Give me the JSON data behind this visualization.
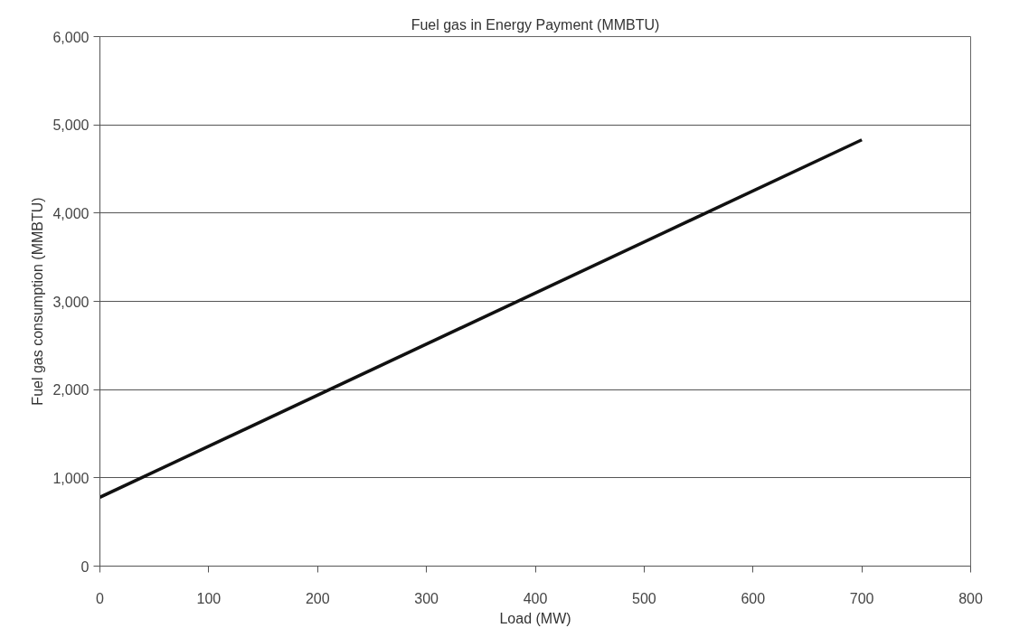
{
  "chart_data": {
    "type": "line",
    "title": "Fuel gas in Energy Payment (MMBTU)",
    "xlabel": "Load (MW)",
    "ylabel": "Fuel gas consumption (MMBTU)",
    "x": [
      0,
      700
    ],
    "series": [
      {
        "color": "#111111",
        "values": [
          780,
          4830
        ]
      }
    ],
    "xlim": [
      0,
      800
    ],
    "xticks": [
      0,
      100,
      200,
      300,
      400,
      500,
      600,
      700,
      800
    ],
    "ylim": [
      0,
      6000
    ],
    "yticks": [
      {
        "value": 0,
        "label": "0"
      },
      {
        "value": 1000,
        "label": "1,000"
      },
      {
        "value": 2000,
        "label": "2,000"
      },
      {
        "value": 3000,
        "label": "3,000"
      },
      {
        "value": 4000,
        "label": "4,000"
      },
      {
        "value": 5000,
        "label": "5,000"
      },
      {
        "value": 6000,
        "label": "6,000"
      }
    ],
    "grid": "y",
    "marker": "none",
    "line_style": "solid"
  }
}
